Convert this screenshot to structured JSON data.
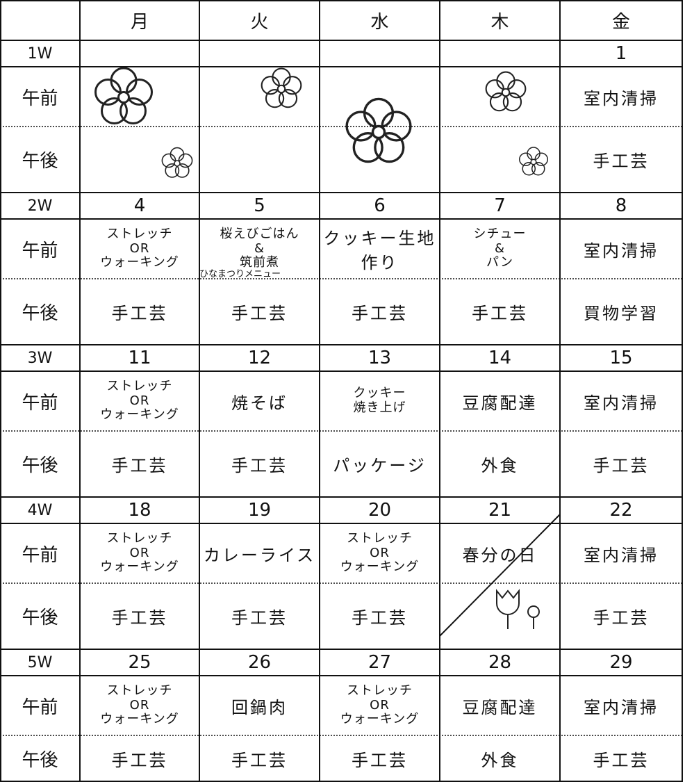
{
  "header": {
    "days": [
      "月",
      "火",
      "水",
      "木",
      "金"
    ]
  },
  "weeks": [
    {
      "label": "1W",
      "dates": [
        null,
        null,
        null,
        null,
        1
      ],
      "am_label": "午前",
      "am": [
        null,
        null,
        null,
        null,
        "室内清掃"
      ],
      "pm_label": "午後",
      "pm": [
        null,
        null,
        null,
        null,
        "手工芸"
      ]
    },
    {
      "label": "2W",
      "dates": [
        4,
        5,
        6,
        7,
        8
      ],
      "am_label": "午前",
      "am": [
        "ストレッチ\nOR\nウォーキング",
        "桜えびごはん\n&\n筑前煮",
        "クッキー生地作り",
        "シチュー\n&\nパン",
        "室内清掃"
      ],
      "am_note": "ひなまつりメニュー",
      "pm_label": "午後",
      "pm": [
        "手工芸",
        "手工芸",
        "手工芸",
        "手工芸",
        "買物学習"
      ]
    },
    {
      "label": "3W",
      "dates": [
        11,
        12,
        13,
        14,
        15
      ],
      "am_label": "午前",
      "am": [
        "ストレッチ\nOR\nウォーキング",
        "焼そば",
        "クッキー\n焼き上げ",
        "豆腐配達",
        "室内清掃"
      ],
      "pm_label": "午後",
      "pm": [
        "手工芸",
        "手工芸",
        "パッケージ",
        "外食",
        "手工芸"
      ]
    },
    {
      "label": "4W",
      "dates": [
        18,
        19,
        20,
        21,
        22
      ],
      "am_label": "午前",
      "am": [
        "ストレッチ\nOR\nウォーキング",
        "カレーライス",
        "ストレッチ\nOR\nウォーキング",
        "春分の日",
        "室内清掃"
      ],
      "pm_label": "午後",
      "pm": [
        "手工芸",
        "手工芸",
        "手工芸",
        null,
        "手工芸"
      ]
    },
    {
      "label": "5W",
      "dates": [
        25,
        26,
        27,
        28,
        29
      ],
      "am_label": "午前",
      "am": [
        "ストレッチ\nOR\nウォーキング",
        "回鍋肉",
        "ストレッチ\nOR\nウォーキング",
        "豆腐配達",
        "室内清掃"
      ],
      "pm_label": "午後",
      "pm": [
        "手工芸",
        "手工芸",
        "手工芸",
        "外食",
        "手工芸"
      ]
    }
  ]
}
